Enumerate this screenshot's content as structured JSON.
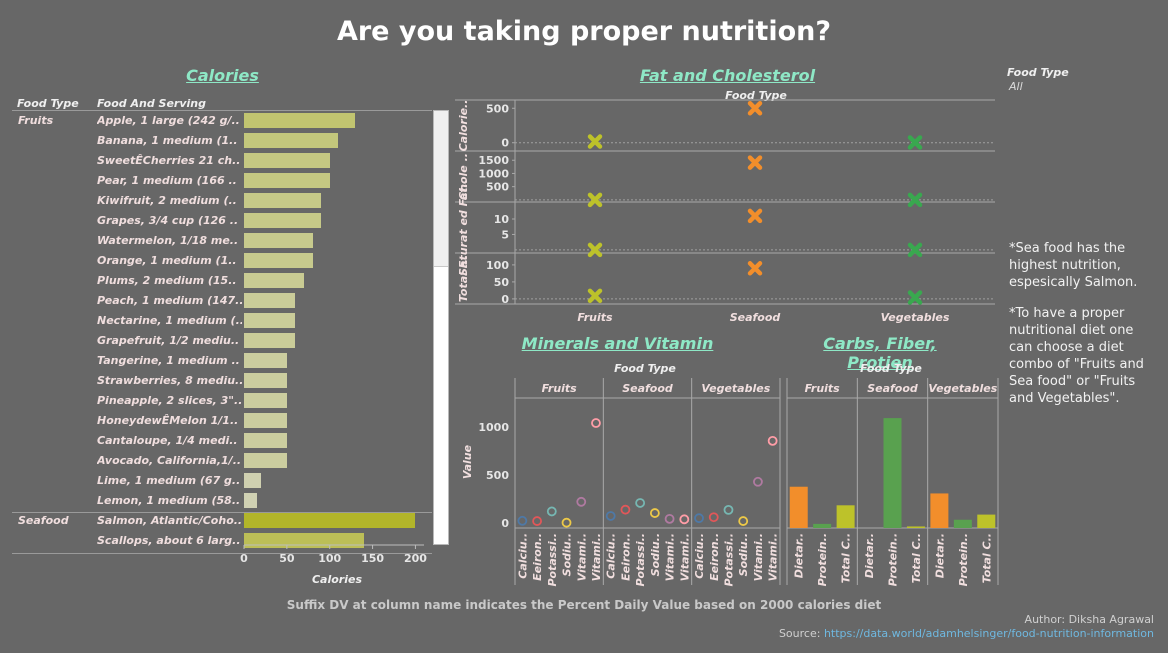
{
  "title": "Are you taking proper nutrition?",
  "filter": {
    "label": "Food Type",
    "value": "All"
  },
  "notes": [
    "*Sea food has the highest nutrition, espesically Salmon.",
    "*To have a proper nutritional diet one can choose a diet combo of \"Fruits and Sea food\" or \"Fruits and Vegetables\"."
  ],
  "footer": "Suffix DV at column name indicates the Percent Daily Value based on 2000 calories diet",
  "author": "Author: Diksha Agrawal",
  "source_label": "Source: ",
  "source_link": "https://data.world/adamhelsinger/food-nutrition-information",
  "chart_data": [
    {
      "type": "bar",
      "title": "Calories",
      "column_headers": [
        "Food Type",
        "Food And Serving"
      ],
      "xlabel": "Calories",
      "xlim": [
        0,
        210
      ],
      "xticks": [
        0,
        50,
        100,
        150,
        200
      ],
      "groups": [
        {
          "name": "Fruits",
          "items": [
            {
              "label": "Apple, 1 large (242 g/..",
              "value": 130
            },
            {
              "label": "Banana, 1 medium (1..",
              "value": 110
            },
            {
              "label": "SweetÊCherries 21 ch..",
              "value": 100
            },
            {
              "label": "Pear, 1 medium (166 ..",
              "value": 100
            },
            {
              "label": "Kiwifruit, 2 medium (..",
              "value": 90
            },
            {
              "label": "Grapes, 3/4 cup (126 ..",
              "value": 90
            },
            {
              "label": "Watermelon, 1/18 me..",
              "value": 80
            },
            {
              "label": "Orange, 1 medium (1..",
              "value": 80
            },
            {
              "label": "Plums, 2 medium (15..",
              "value": 70
            },
            {
              "label": "Peach, 1 medium (147..",
              "value": 60
            },
            {
              "label": "Nectarine, 1 medium (..",
              "value": 60
            },
            {
              "label": "Grapefruit, 1/2 mediu..",
              "value": 60
            },
            {
              "label": "Tangerine, 1 medium ..",
              "value": 50
            },
            {
              "label": "Strawberries, 8 mediu..",
              "value": 50
            },
            {
              "label": "Pineapple, 2 slices, 3\"..",
              "value": 50
            },
            {
              "label": "HoneydewÊMelon 1/1..",
              "value": 50
            },
            {
              "label": "Cantaloupe, 1/4 medi..",
              "value": 50
            },
            {
              "label": "Avocado, California,1/..",
              "value": 50
            },
            {
              "label": "Lime, 1 medium (67 g..",
              "value": 20
            },
            {
              "label": "Lemon, 1 medium (58..",
              "value": 15
            }
          ]
        },
        {
          "name": "Seafood",
          "items": [
            {
              "label": "Salmon, Atlantic/Coho..",
              "value": 200
            },
            {
              "label": "Scallops, about 6 larg..",
              "value": 140
            }
          ]
        }
      ]
    },
    {
      "type": "scatter",
      "title": "Fat and Cholesterol",
      "column_header": "Food Type",
      "categories": [
        "Fruits",
        "Seafood",
        "Vegetables"
      ],
      "rows": [
        {
          "label": "Calorie..",
          "ticks": [
            "500",
            "0"
          ],
          "tick_values": [
            500,
            0
          ],
          "ylim": [
            -120,
            620
          ],
          "values": [
            17,
            500,
            4
          ]
        },
        {
          "label": "Chole ..",
          "ticks": [
            "1500",
            "1000",
            "500"
          ],
          "tick_values": [
            1500,
            1000,
            500
          ],
          "ylim": [
            -80,
            1850
          ],
          "values": [
            0,
            1410,
            0
          ]
        },
        {
          "label": "Saturat ed Fat..",
          "ticks": [
            "10",
            "5"
          ],
          "tick_values": [
            10,
            5
          ],
          "ylim": [
            -1,
            15.5
          ],
          "values": [
            0,
            11,
            0
          ]
        },
        {
          "label": "Total F..",
          "ticks": [
            "100",
            "50",
            "0"
          ],
          "tick_values": [
            100,
            50,
            0
          ],
          "ylim": [
            -15,
            135
          ],
          "values": [
            9,
            90,
            4
          ]
        }
      ],
      "colors": [
        "#bdc22a",
        "#f28e2b",
        "#39a84f"
      ]
    },
    {
      "type": "scatter",
      "title": "Minerals and Vitamin",
      "column_header": "Food Type",
      "ylabel": "Value",
      "ylim": [
        -50,
        1300
      ],
      "yticks": [
        0,
        500,
        1000
      ],
      "groups": [
        "Fruits",
        "Seafood",
        "Vegetables"
      ],
      "x": [
        "Calciu..",
        "Eeiron..",
        "Potassi..",
        "Sodiu..",
        "Vitami..",
        "Vitami.."
      ],
      "series": [
        {
          "values": [
            25,
            22,
            122,
            5,
            222,
            1040
          ]
        },
        {
          "values": [
            75,
            140,
            210,
            105,
            45,
            40
          ]
        },
        {
          "values": [
            52,
            62,
            138,
            22,
            430,
            855
          ]
        }
      ],
      "point_colors": [
        "#4e79a7",
        "#e15759",
        "#76b7b2",
        "#edc948",
        "#b07aa1",
        "#ff9da7"
      ]
    },
    {
      "type": "bar",
      "title": "Carbs, Fiber, Protien",
      "column_header": "Food Type",
      "groups": [
        "Fruits",
        "Seafood",
        "Vegetables"
      ],
      "x": [
        "Dietar..",
        "Protein..",
        "Total C.."
      ],
      "ylim": [
        0,
        1260
      ],
      "series": [
        {
          "values": [
            400,
            40,
            220
          ]
        },
        {
          "values": [
            0,
            1065,
            15
          ]
        },
        {
          "values": [
            335,
            80,
            130
          ]
        }
      ],
      "colors": [
        "#f28e2b",
        "#59a14f",
        "#bdc22a"
      ]
    }
  ]
}
